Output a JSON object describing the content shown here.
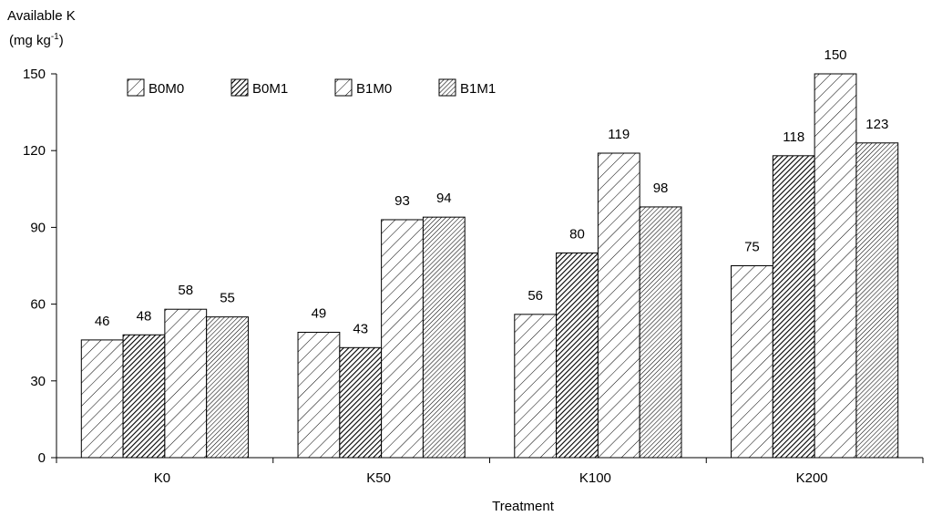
{
  "chart_data": {
    "type": "bar",
    "title": "",
    "ylabel": "Available K",
    "ylabel_unit": {
      "base": "(mg kg",
      "exponent": "-1",
      "close": ")"
    },
    "xlabel": "Treatment",
    "categories": [
      "K0",
      "K50",
      "K100",
      "K200"
    ],
    "ylim": [
      0,
      150
    ],
    "yticks": [
      0,
      30,
      60,
      90,
      120,
      150
    ],
    "legend_position": "top-left",
    "grid": false,
    "series": [
      {
        "name": "B0M0",
        "values": [
          46,
          49,
          56,
          75
        ],
        "pattern": "hatch-light-wide"
      },
      {
        "name": "B0M1",
        "values": [
          48,
          43,
          80,
          118
        ],
        "pattern": "hatch-dark-dense"
      },
      {
        "name": "B1M0",
        "values": [
          58,
          93,
          119,
          150
        ],
        "pattern": "hatch-light-wide"
      },
      {
        "name": "B1M1",
        "values": [
          55,
          94,
          98,
          123
        ],
        "pattern": "hatch-medium-dense"
      }
    ]
  }
}
